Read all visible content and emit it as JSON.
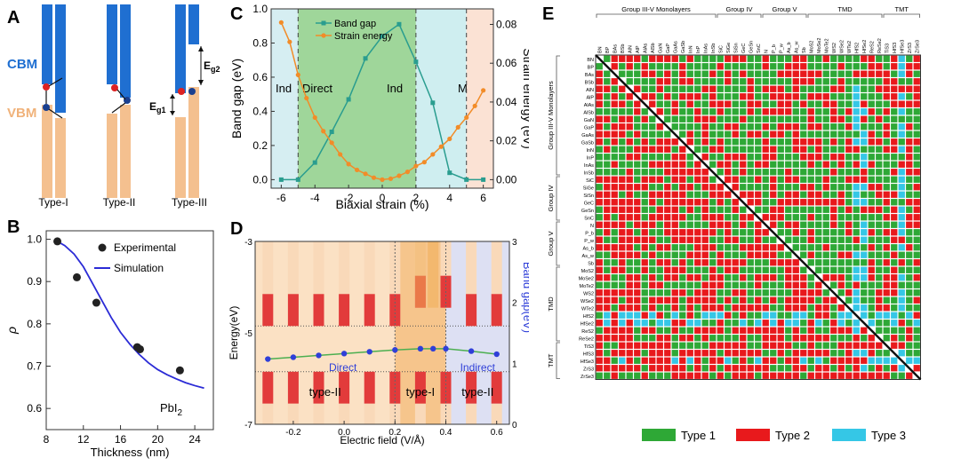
{
  "panels": {
    "A": {
      "letter": "A",
      "cbm_label": "CBM",
      "vbm_label": "VBM",
      "eg1_label": "E",
      "eg1_sub": "g1",
      "eg2_label": "E",
      "eg2_sub": "g2",
      "types": [
        "Type-I",
        "Type-II",
        "Type-III"
      ],
      "colors": {
        "cbm": "#1f6fd1",
        "vbm": "#f4c08f",
        "electron": "#d22",
        "hole": "#1a3f8f"
      }
    },
    "B": {
      "letter": "B"
    },
    "C": {
      "letter": "C"
    },
    "D": {
      "letter": "D"
    },
    "E": {
      "letter": "E"
    }
  },
  "chart_data": [
    {
      "id": "B",
      "type": "scatter",
      "xlabel": "Thickness (nm)",
      "ylabel": "ρ",
      "annotation": "PbI",
      "annotation_sub": "2",
      "xlim": [
        8,
        26
      ],
      "ylim": [
        0.55,
        1.02
      ],
      "xticks": [
        8,
        12,
        16,
        20,
        24
      ],
      "yticks": [
        0.6,
        0.7,
        0.8,
        0.9,
        1.0
      ],
      "ytick_labels": [
        "0.6",
        "0.7",
        "0.8",
        "0.9",
        "1.0"
      ],
      "series": [
        {
          "name": "Experimental",
          "kind": "points",
          "x": [
            9.2,
            11.3,
            13.4,
            17.8,
            18.1,
            22.4
          ],
          "y": [
            0.995,
            0.91,
            0.85,
            0.745,
            0.74,
            0.69
          ]
        },
        {
          "name": "Simulation",
          "kind": "line",
          "x": [
            9.2,
            10,
            11,
            12,
            13,
            14,
            15,
            16,
            17,
            18,
            19,
            20,
            21,
            22,
            23,
            24,
            25
          ],
          "y": [
            0.995,
            0.985,
            0.965,
            0.935,
            0.895,
            0.855,
            0.815,
            0.78,
            0.752,
            0.728,
            0.708,
            0.692,
            0.68,
            0.67,
            0.661,
            0.654,
            0.648
          ]
        }
      ],
      "colors": {
        "line": "#2b2bd6",
        "points": "#222"
      }
    },
    {
      "id": "C",
      "type": "line",
      "xlabel": "Biaxial strain (%)",
      "ylabel": "Band gap (eV)",
      "ylabel_right": "Strain energy (eV)",
      "xlim": [
        -6.6,
        6.6
      ],
      "ylim": [
        -0.05,
        1.0
      ],
      "ylim_right": [
        -0.0044,
        0.088
      ],
      "xticks": [
        -6,
        -4,
        -2,
        0,
        2,
        4,
        6
      ],
      "yticks": [
        0.0,
        0.2,
        0.4,
        0.6,
        0.8,
        1.0
      ],
      "ytick_labels": [
        "0.0",
        "0.2",
        "0.4",
        "0.6",
        "0.8",
        "1.0"
      ],
      "yticks_right": [
        0.0,
        0.02,
        0.04,
        0.06,
        0.08
      ],
      "ytick_right_labels": [
        "0.00",
        "0.02",
        "0.04",
        "0.06",
        "0.08"
      ],
      "regions": [
        {
          "label": "Ind",
          "from": -6.6,
          "to": -5,
          "color": "#d6eef2"
        },
        {
          "label": "Direct",
          "from": -5,
          "to": 2,
          "color": "#9fd69a"
        },
        {
          "label": "Ind",
          "from": 2,
          "to": 5,
          "color": "#cfeef0"
        },
        {
          "label": "M",
          "from": 5,
          "to": 6.6,
          "color": "#fbe2d4"
        }
      ],
      "boundaries": [
        -5,
        2,
        5
      ],
      "series": [
        {
          "name": "Band gap",
          "axis": "left",
          "color": "#2a9d8f",
          "x": [
            -6,
            -5,
            -4,
            -3,
            -2,
            -1,
            0,
            1,
            2,
            3,
            4,
            5,
            6
          ],
          "y": [
            0.0,
            0.0,
            0.1,
            0.28,
            0.47,
            0.71,
            0.84,
            0.91,
            0.69,
            0.45,
            0.04,
            0.0,
            0.0
          ]
        },
        {
          "name": "Strain energy",
          "axis": "right",
          "color": "#f28c28",
          "x": [
            -6,
            -5.5,
            -5,
            -4.5,
            -4,
            -3.5,
            -3,
            -2.5,
            -2,
            -1.5,
            -1,
            -0.5,
            0,
            0.5,
            1,
            1.5,
            2,
            2.5,
            3,
            3.5,
            4,
            4.5,
            5,
            5.5,
            6
          ],
          "y": [
            0.081,
            0.071,
            0.054,
            0.042,
            0.032,
            0.025,
            0.019,
            0.013,
            0.008,
            0.005,
            0.003,
            0.001,
            0.0,
            0.0005,
            0.002,
            0.004,
            0.007,
            0.009,
            0.013,
            0.017,
            0.021,
            0.027,
            0.032,
            0.038,
            0.046
          ]
        }
      ]
    },
    {
      "id": "D",
      "type": "line",
      "xlabel": "Electric field (V/Å)",
      "ylabel": "Energy(eV)",
      "ylabel_right": "Band gap(eV)",
      "xlim": [
        -0.35,
        0.65
      ],
      "ylim": [
        -7,
        -3
      ],
      "ylim_right": [
        0,
        3
      ],
      "xticks": [
        -0.2,
        0.0,
        0.2,
        0.4,
        0.6
      ],
      "xtick_labels": [
        "-0.2",
        "0.0",
        "0.2",
        "0.4",
        "0.6"
      ],
      "yticks": [
        -7,
        -5,
        -3
      ],
      "yticks_right": [
        0,
        1,
        2,
        3
      ],
      "regions": [
        {
          "label": "Direct",
          "type_label": "type-II",
          "from": -0.35,
          "to": 0.2,
          "color": "#fbe1c4"
        },
        {
          "label": "",
          "type_label": "type-I",
          "from": 0.2,
          "to": 0.4,
          "color": "#f6c58c"
        },
        {
          "label": "Indirect",
          "type_label": "type-II",
          "from": 0.4,
          "to": 0.65,
          "color": "#dde0f3"
        }
      ],
      "fields": [
        -0.3,
        -0.2,
        -0.1,
        0.0,
        0.1,
        0.2,
        0.3,
        0.4,
        0.5,
        0.6
      ],
      "cbm_bottoms": [
        -4.85,
        -4.85,
        -4.85,
        -4.85,
        -4.85,
        -4.85,
        -4.45,
        -4.45,
        -4.85,
        -4.85
      ],
      "vbm_tops": [
        -5.85,
        -5.85,
        -5.85,
        -5.85,
        -5.85,
        -5.85,
        -5.85,
        -5.85,
        -5.85,
        -5.85
      ],
      "series": [
        {
          "name": "Band gap",
          "axis": "right",
          "color": "#2f3fd8",
          "x": [
            -0.3,
            -0.2,
            -0.1,
            0.0,
            0.1,
            0.2,
            0.3,
            0.35,
            0.4,
            0.5,
            0.6
          ],
          "y": [
            1.07,
            1.1,
            1.13,
            1.16,
            1.19,
            1.22,
            1.24,
            1.24,
            1.24,
            1.2,
            1.15
          ]
        }
      ]
    },
    {
      "id": "E",
      "type": "heatmap",
      "group_labels": [
        "Group III-V Monolayers",
        "Group IV",
        "Group V",
        "TMD",
        "TMT"
      ],
      "row_groups": [
        "Group III-V Monolayers",
        "Group IV",
        "Group V",
        "TMD",
        "TMT"
      ],
      "materials": [
        "BN",
        "BP",
        "BAs",
        "BSb",
        "AlN",
        "AlP",
        "AlAs",
        "AlSb",
        "GaN",
        "GaP",
        "GaAs",
        "GaSb",
        "InN",
        "InP",
        "InAs",
        "InSb",
        "SiC",
        "SiGe",
        "SiSn",
        "GeC",
        "GeSn",
        "SnC",
        "N",
        "P_b",
        "P_w",
        "As_b",
        "As_w",
        "Sb",
        "MoS2",
        "MoSe2",
        "MoTe2",
        "WS2",
        "WSe2",
        "WTe2",
        "HfS2",
        "HfSe2",
        "ReS2",
        "ReSe2",
        "TiS3",
        "HfS3",
        "HfSe3",
        "ZrS3",
        "ZrSe3"
      ],
      "group_counts": [
        16,
        6,
        6,
        10,
        5
      ],
      "legend": [
        {
          "name": "Type 1",
          "color": "#2ea836"
        },
        {
          "name": "Type 2",
          "color": "#e8191c"
        },
        {
          "name": "Type 3",
          "color": "#35c7e6"
        }
      ]
    }
  ]
}
